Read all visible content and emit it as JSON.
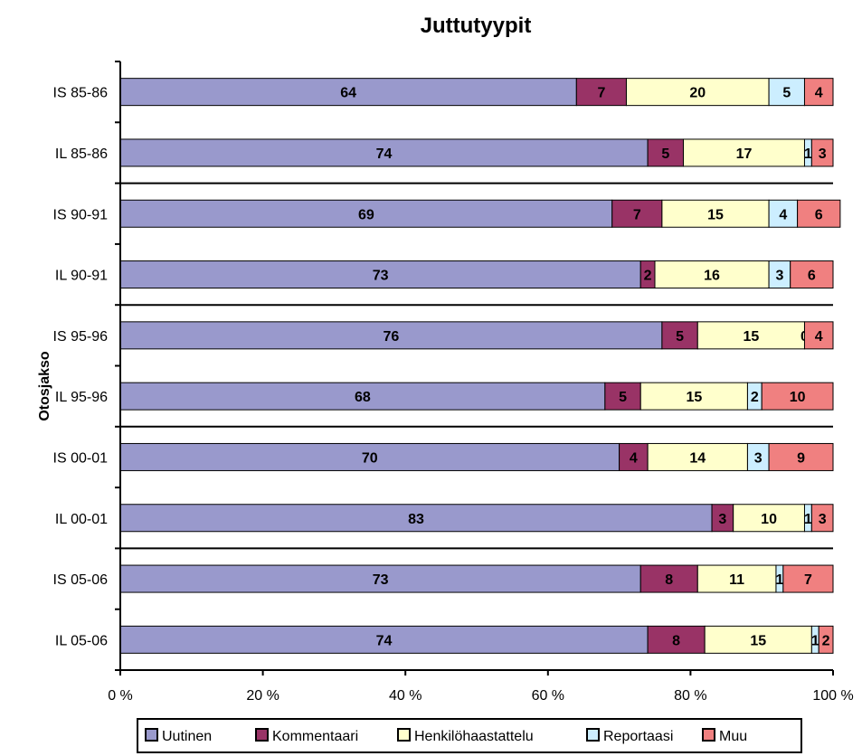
{
  "chart_data": {
    "type": "bar",
    "orientation": "horizontal",
    "stacked": true,
    "title": "Juttutyypit",
    "ylabel": "Otosjakso",
    "xlabel": "",
    "xlim": [
      0,
      100
    ],
    "xticks": [
      "0 %",
      "20 %",
      "40 %",
      "60 %",
      "80 %",
      "100 %"
    ],
    "categories": [
      "IS 85-86",
      "IL 85-86",
      "IS 90-91",
      "IL 90-91",
      "IS 95-96",
      "IL 95-96",
      "IS 00-01",
      "IL 00-01",
      "IS 05-06",
      "IL 05-06"
    ],
    "series": [
      {
        "name": "Uutinen",
        "color": "#9999cc",
        "values": [
          64,
          74,
          69,
          73,
          76,
          68,
          70,
          83,
          73,
          74
        ]
      },
      {
        "name": "Kommentaari",
        "color": "#993366",
        "values": [
          7,
          5,
          7,
          2,
          5,
          5,
          4,
          3,
          8,
          8
        ]
      },
      {
        "name": "Henkilöhaastattelu",
        "color": "#ffffcc",
        "values": [
          20,
          17,
          15,
          16,
          15,
          15,
          14,
          10,
          11,
          15
        ]
      },
      {
        "name": "Reportaasi",
        "color": "#cceeff",
        "values": [
          5,
          1,
          4,
          3,
          0,
          2,
          3,
          1,
          1,
          1
        ]
      },
      {
        "name": "Muu",
        "color": "#f08080",
        "values": [
          4,
          3,
          6,
          6,
          4,
          10,
          9,
          3,
          7,
          2
        ]
      }
    ],
    "grid": false,
    "legend_position": "bottom"
  }
}
